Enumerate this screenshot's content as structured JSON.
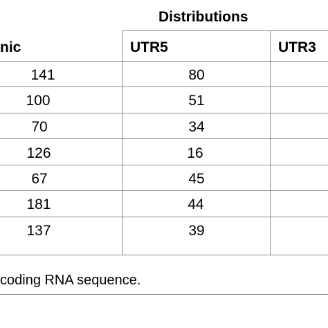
{
  "table": {
    "group_header": "Distributions",
    "columns": [
      "nic",
      "UTR5",
      "UTR3"
    ],
    "rows": [
      {
        "intronic": "141",
        "utr5": "80"
      },
      {
        "intronic": "100",
        "utr5": "51"
      },
      {
        "intronic": "70",
        "utr5": "34"
      },
      {
        "intronic": "126",
        "utr5": "16"
      },
      {
        "intronic": "67",
        "utr5": "45"
      },
      {
        "intronic": "181",
        "utr5": "44"
      },
      {
        "intronic": "137",
        "utr5": "39"
      }
    ]
  },
  "footnote": "coding RNA sequence."
}
